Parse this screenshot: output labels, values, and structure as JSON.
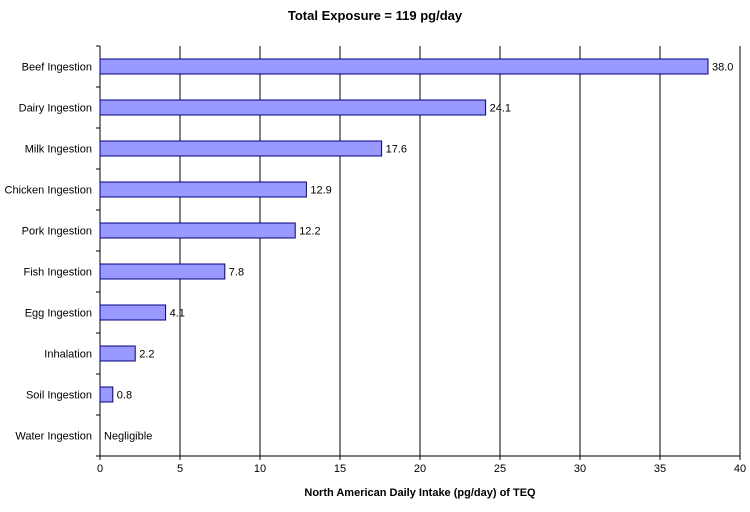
{
  "chart_data": {
    "type": "bar",
    "orientation": "horizontal",
    "title": "Total Exposure = 119 pg/day",
    "xlabel": "North American Daily Intake (pg/day) of TEQ",
    "ylabel": "",
    "xlim": [
      0,
      40
    ],
    "xticks": [
      0,
      5,
      10,
      15,
      20,
      25,
      30,
      35,
      40
    ],
    "grid": "vertical",
    "bar_color": "#9999ff",
    "bar_stroke": "#000080",
    "categories": [
      "Beef Ingestion",
      "Dairy Ingestion",
      "Milk Ingestion",
      "Chicken Ingestion",
      "Pork Ingestion",
      "Fish Ingestion",
      "Egg Ingestion",
      "Inhalation",
      "Soil Ingestion",
      "Water Ingestion"
    ],
    "values": [
      38.0,
      24.1,
      17.6,
      12.9,
      12.2,
      7.8,
      4.1,
      2.2,
      0.8,
      0
    ],
    "data_labels": [
      "38.0",
      "24.1",
      "17.6",
      "12.9",
      "12.2",
      "7.8",
      "4.1",
      "2.2",
      "0.8",
      "Negligible"
    ]
  }
}
